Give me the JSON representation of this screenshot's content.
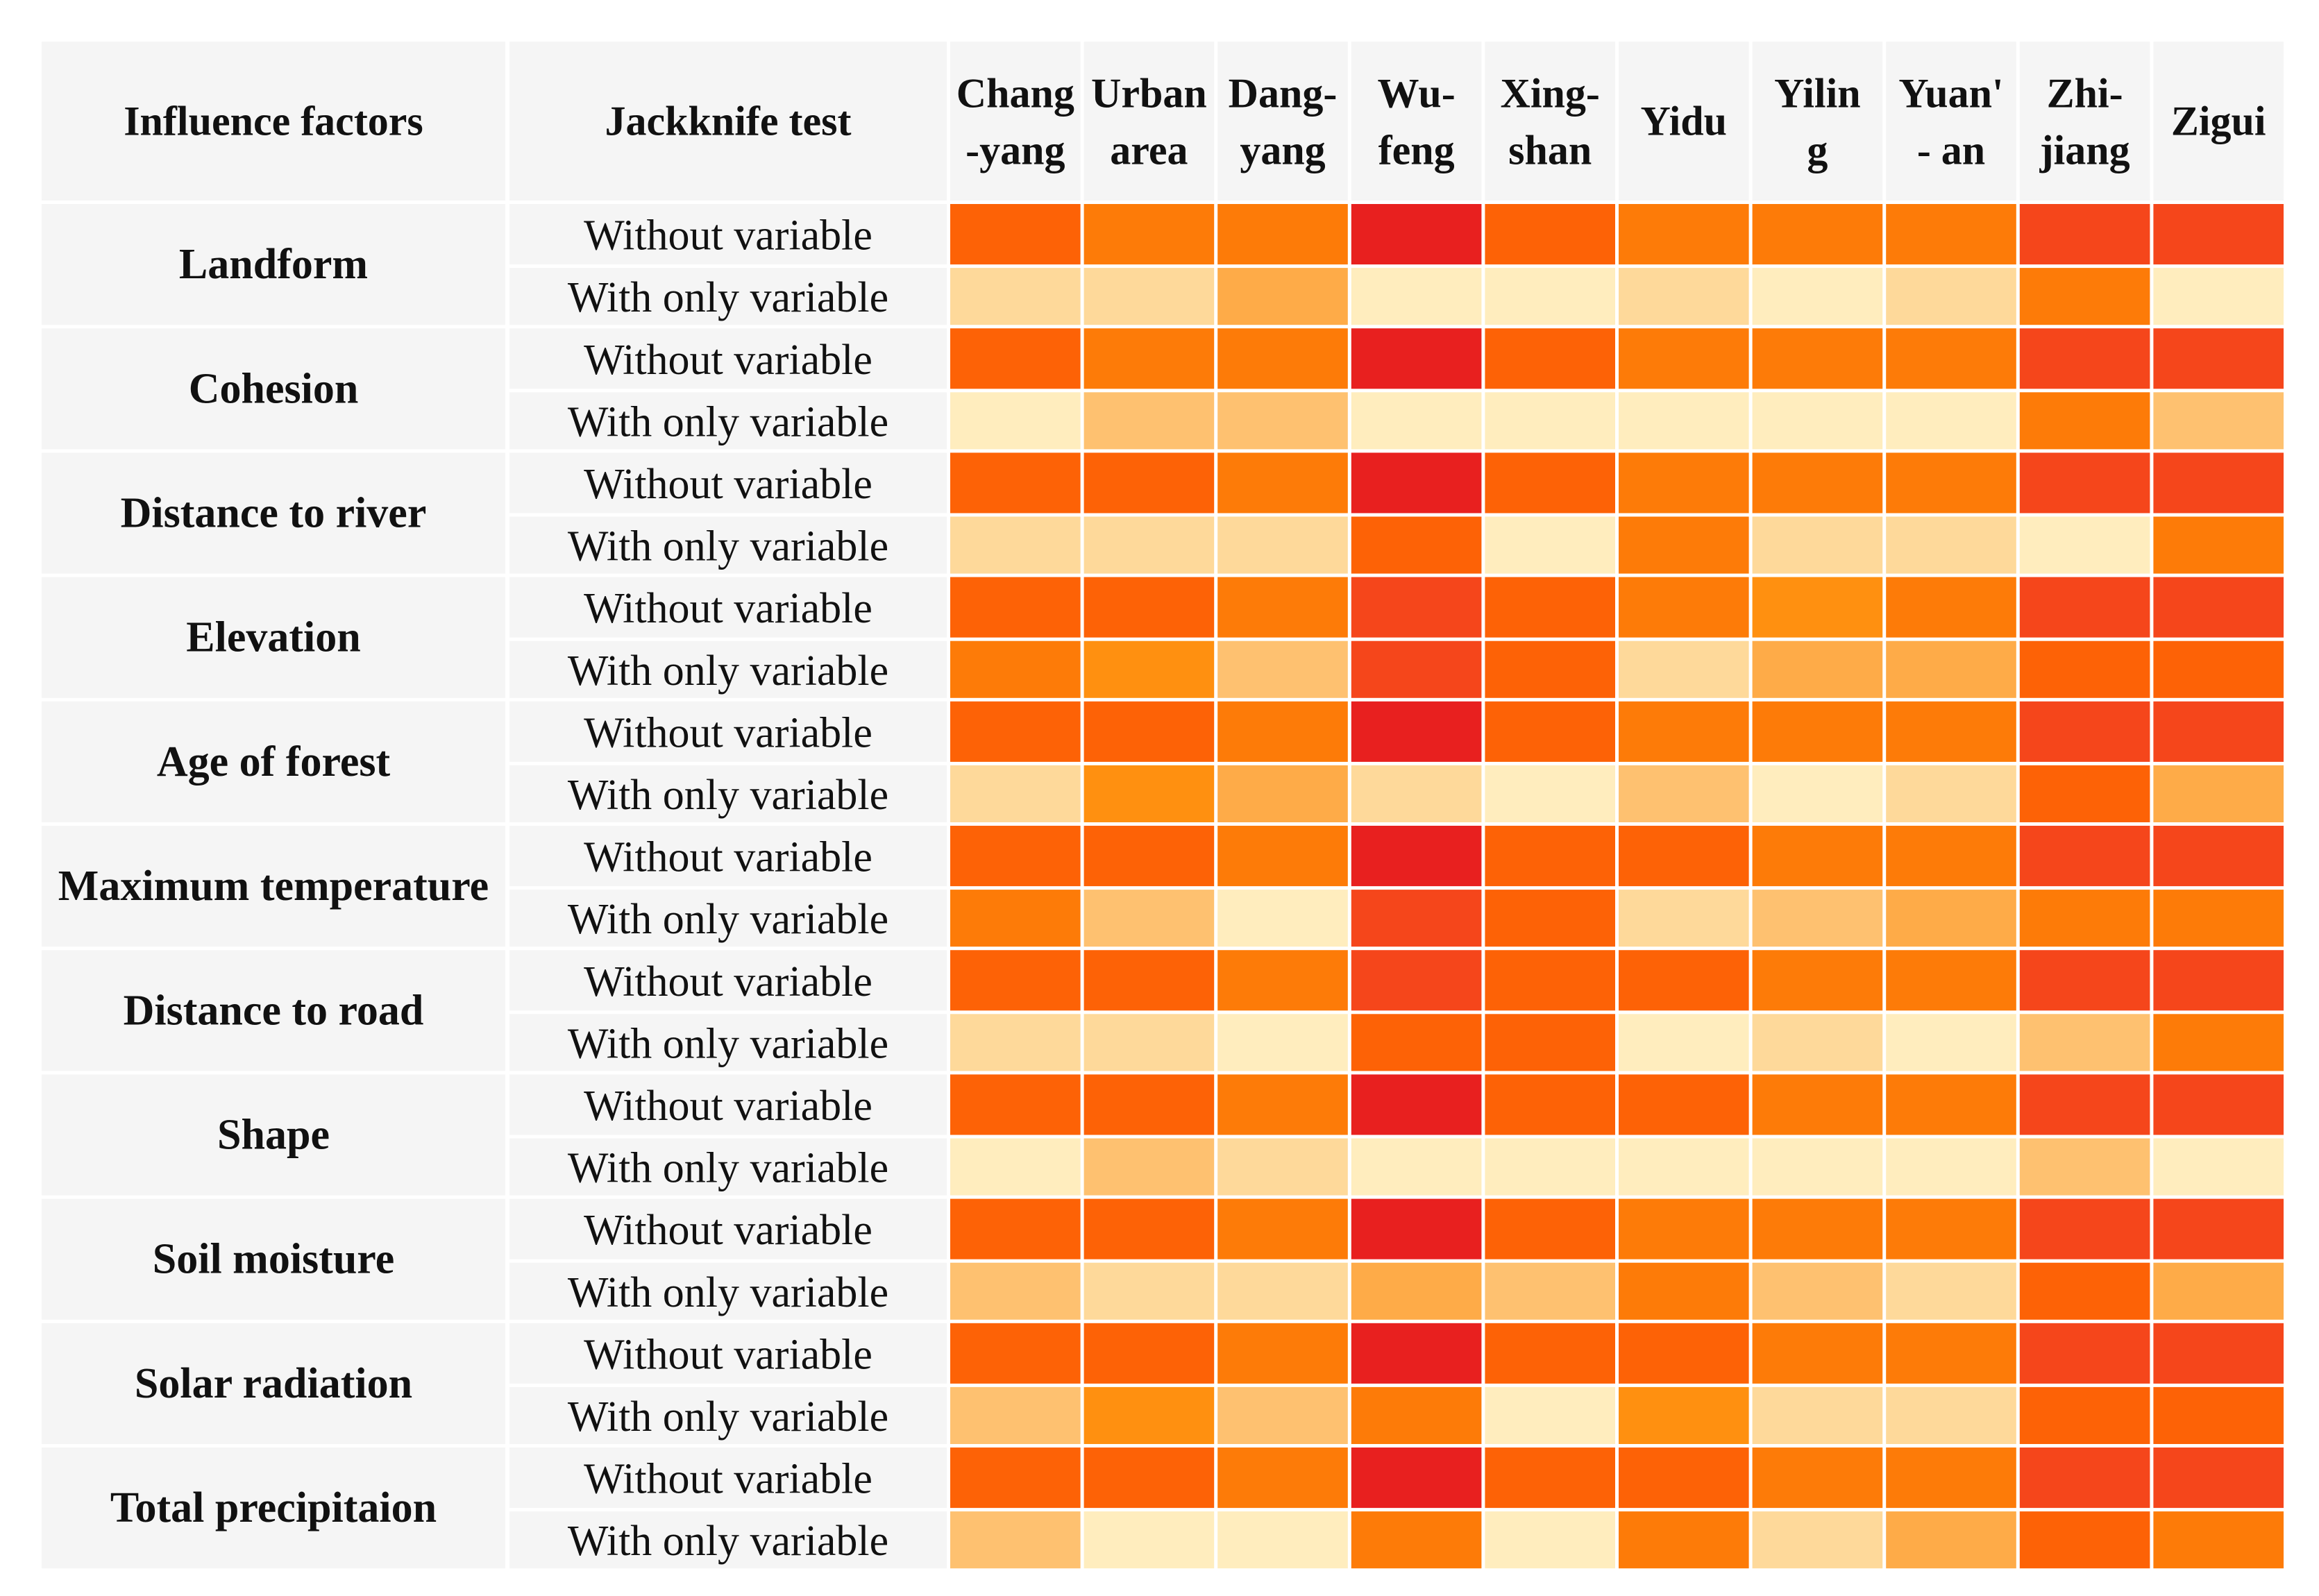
{
  "chart_data": {
    "type": "heatmap",
    "title": "",
    "header": {
      "factor_col": "Influence factors",
      "test_col": "Jackknife test"
    },
    "columns": [
      {
        "line1": "Chang",
        "line2": "-yang"
      },
      {
        "line1": "Urban",
        "line2": "area"
      },
      {
        "line1": "Dang-",
        "line2": "yang"
      },
      {
        "line1": "Wu-",
        "line2": "feng"
      },
      {
        "line1": "Xing-",
        "line2": "shan"
      },
      {
        "line1": "Yidu",
        "line2": ""
      },
      {
        "line1": "Yilin",
        "line2": "g"
      },
      {
        "line1": "Yuan'",
        "line2": "- an"
      },
      {
        "line1": "Zhi-",
        "line2": "jiang"
      },
      {
        "line1": "Zigui",
        "line2": ""
      }
    ],
    "test_labels": [
      "Without variable",
      "With only variable"
    ],
    "colors": [
      "#ffedbe",
      "#fed99a",
      "#fec170",
      "#feab48",
      "#ff9010",
      "#fd7b08",
      "#fd6206",
      "#f5461b",
      "#e8201f"
    ],
    "value_scale": "ordinal level 0 (lightest) to 8 (darkest red)",
    "factors": [
      {
        "name": "Landform",
        "without": [
          6,
          5,
          5,
          8,
          6,
          5,
          5,
          5,
          7,
          7
        ],
        "with_only": [
          1,
          1,
          3,
          0,
          0,
          1,
          0,
          1,
          5,
          0
        ]
      },
      {
        "name": "Cohesion",
        "without": [
          6,
          5,
          5,
          8,
          6,
          5,
          5,
          5,
          7,
          7
        ],
        "with_only": [
          0,
          2,
          2,
          0,
          0,
          0,
          0,
          0,
          5,
          2
        ]
      },
      {
        "name": "Distance to river",
        "without": [
          6,
          6,
          5,
          8,
          6,
          5,
          5,
          5,
          7,
          7
        ],
        "with_only": [
          1,
          1,
          1,
          6,
          0,
          5,
          1,
          1,
          0,
          5
        ]
      },
      {
        "name": "Elevation",
        "without": [
          6,
          6,
          5,
          7,
          6,
          5,
          4,
          5,
          7,
          7
        ],
        "with_only": [
          5,
          4,
          2,
          7,
          6,
          1,
          3,
          3,
          6,
          6
        ]
      },
      {
        "name": "Age of forest",
        "without": [
          6,
          6,
          5,
          8,
          6,
          5,
          5,
          5,
          7,
          7
        ],
        "with_only": [
          1,
          4,
          3,
          1,
          0,
          2,
          0,
          1,
          6,
          3
        ]
      },
      {
        "name": "Maximum temperature",
        "without": [
          6,
          6,
          5,
          8,
          6,
          6,
          5,
          5,
          7,
          7
        ],
        "with_only": [
          5,
          2,
          0,
          7,
          6,
          1,
          2,
          3,
          5,
          5
        ]
      },
      {
        "name": "Distance to road",
        "without": [
          6,
          6,
          5,
          7,
          6,
          6,
          5,
          5,
          7,
          7
        ],
        "with_only": [
          1,
          1,
          0,
          6,
          6,
          0,
          1,
          0,
          2,
          5
        ]
      },
      {
        "name": "Shape",
        "without": [
          6,
          6,
          5,
          8,
          6,
          6,
          5,
          5,
          7,
          7
        ],
        "with_only": [
          0,
          2,
          1,
          0,
          0,
          0,
          0,
          0,
          2,
          0
        ]
      },
      {
        "name": "Soil moisture",
        "without": [
          6,
          6,
          5,
          8,
          6,
          5,
          5,
          5,
          7,
          7
        ],
        "with_only": [
          2,
          1,
          1,
          3,
          2,
          5,
          2,
          1,
          6,
          3
        ]
      },
      {
        "name": "Solar radiation",
        "without": [
          6,
          6,
          5,
          8,
          6,
          6,
          5,
          5,
          7,
          7
        ],
        "with_only": [
          2,
          4,
          2,
          5,
          0,
          4,
          1,
          1,
          6,
          6
        ]
      },
      {
        "name": "Total precipitaion",
        "without": [
          6,
          6,
          5,
          8,
          6,
          6,
          5,
          5,
          7,
          7
        ],
        "with_only": [
          2,
          0,
          0,
          5,
          0,
          5,
          1,
          3,
          6,
          5
        ]
      }
    ]
  }
}
